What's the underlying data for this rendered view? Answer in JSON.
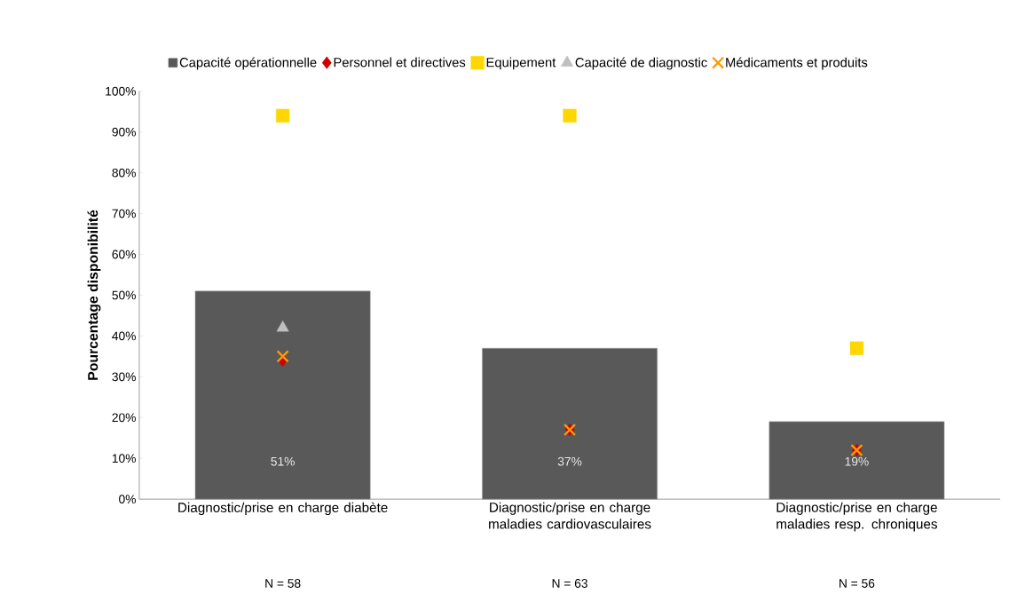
{
  "chart_data": {
    "type": "bar",
    "ylabel": "Pourcentage disponibilité",
    "categories": [
      "Diagnostic/prise en charge diabète",
      "Diagnostic/prise en charge maladies cardiovasculaires",
      "Diagnostic/prise en charge maladies resp. chroniques"
    ],
    "series": [
      {
        "name": "Capacité opérationnelle",
        "color": "#595959",
        "values": [
          51,
          37,
          19
        ],
        "value_labels": [
          "51%",
          "37%",
          "19%"
        ]
      },
      {
        "name": "Personnel et directives",
        "type": "scatter",
        "marker": "diamond",
        "color": "#cc0000",
        "values": [
          34,
          17,
          12
        ]
      },
      {
        "name": "Equipement",
        "type": "scatter",
        "marker": "square",
        "color": "#ffd700",
        "values": [
          94,
          94,
          37
        ]
      },
      {
        "name": "Capacité de diagnostic",
        "type": "scatter",
        "marker": "triangle",
        "color": "#bfbfbf",
        "values": [
          42,
          null,
          null
        ]
      },
      {
        "name": "Médicaments et produits",
        "type": "scatter",
        "marker": "cross",
        "color": "#ff9900",
        "values": [
          35,
          17,
          12
        ]
      }
    ],
    "ylim": [
      0,
      100
    ],
    "yticks": [
      {
        "value": 0,
        "label": "0%"
      },
      {
        "value": 10,
        "label": "10%"
      },
      {
        "value": 20,
        "label": "20%"
      },
      {
        "value": 30,
        "label": "30%"
      },
      {
        "value": 40,
        "label": "40%"
      },
      {
        "value": 50,
        "label": "50%"
      },
      {
        "value": 60,
        "label": "60%"
      },
      {
        "value": 70,
        "label": "70%"
      },
      {
        "value": 80,
        "label": "80%"
      },
      {
        "value": 90,
        "label": "90%"
      },
      {
        "value": 100,
        "label": "100%"
      }
    ],
    "legend": "top",
    "annotations": [
      "N = 58",
      "N = 63",
      "N = 56"
    ]
  }
}
